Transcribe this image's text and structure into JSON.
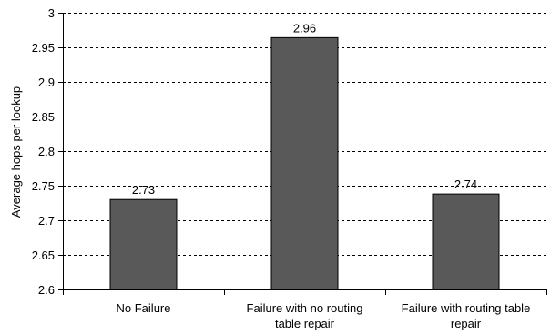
{
  "chart_data": {
    "type": "bar",
    "title": "",
    "xlabel": "",
    "ylabel": "Average hops per lookup",
    "categories": [
      [
        "No Failure"
      ],
      [
        "Failure with no routing",
        "table repair"
      ],
      [
        "Failure with routing table",
        "repair"
      ]
    ],
    "values": [
      2.73,
      2.964,
      2.738
    ],
    "data_labels": [
      "2.73",
      "2.96",
      "2.74"
    ],
    "ylim": [
      2.6,
      3
    ],
    "yticks": [
      "2.6",
      "2.65",
      "2.7",
      "2.75",
      "2.8",
      "2.85",
      "2.9",
      "2.95",
      "3"
    ],
    "grid": "horizontal dashed",
    "legend": "none",
    "bar_color": "#595959"
  }
}
